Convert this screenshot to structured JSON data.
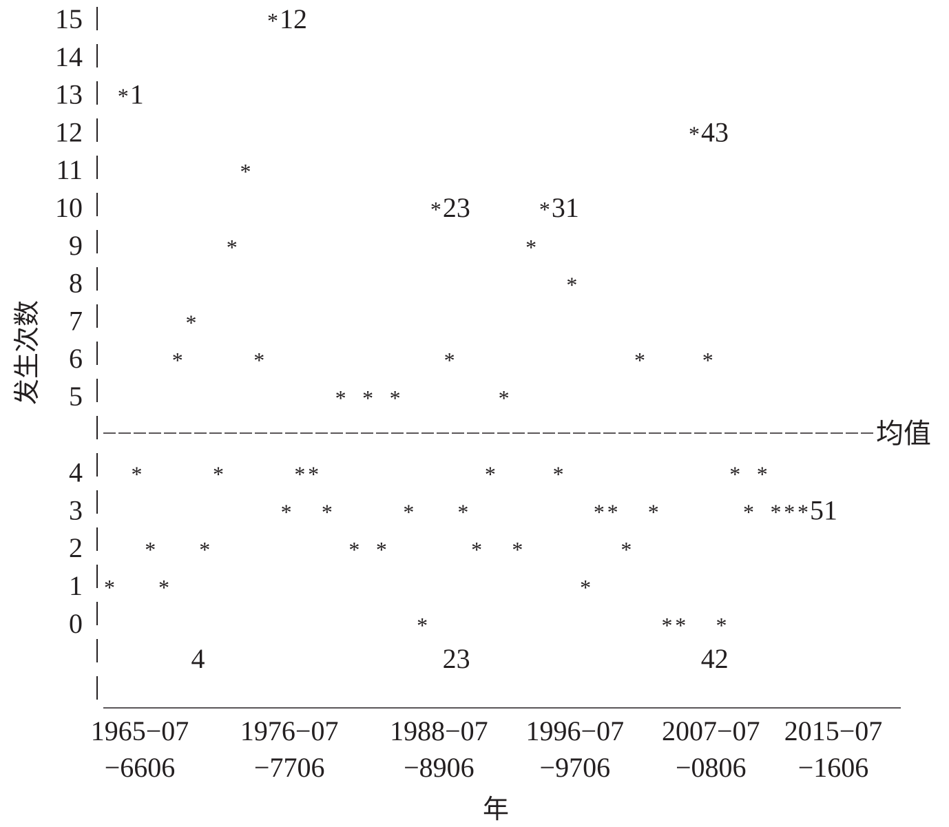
{
  "chart_data": {
    "type": "scatter",
    "title": "",
    "xlabel": "年",
    "ylabel": "发生次数",
    "marker": "*",
    "mean_label": "均值",
    "y_above_mean_ticks": [
      5,
      6,
      7,
      8,
      9,
      10,
      11,
      12,
      13,
      14,
      15
    ],
    "y_below_mean_ticks": [
      0,
      1,
      2,
      3,
      4
    ],
    "x_tick_labels": [
      {
        "top": "1965−07",
        "bottom": "−6606"
      },
      {
        "top": "1976−07",
        "bottom": "−7706"
      },
      {
        "top": "1988−07",
        "bottom": "−8906"
      },
      {
        "top": "1996−07",
        "bottom": "−9706"
      },
      {
        "top": "2007−07",
        "bottom": "−0806"
      },
      {
        "top": "2015−07",
        "bottom": "−1606"
      }
    ],
    "x_tick_index": [
      1,
      12,
      23,
      33,
      43,
      52
    ],
    "series": [
      {
        "values": [
          1,
          13,
          4,
          2,
          1,
          6,
          7,
          2,
          4,
          9,
          11,
          6,
          15,
          3,
          4,
          4,
          3,
          5,
          2,
          5,
          2,
          5,
          3,
          0,
          10,
          6,
          3,
          2,
          4,
          5,
          2,
          9,
          10,
          4,
          8,
          1,
          3,
          3,
          2,
          6,
          3,
          0,
          0,
          12,
          6,
          0,
          4,
          3,
          4,
          3,
          3,
          3
        ]
      }
    ],
    "annotations": [
      {
        "index": 2,
        "text": "1"
      },
      {
        "index": 13,
        "text": "12"
      },
      {
        "index": 25,
        "text": "23"
      },
      {
        "index": 33,
        "text": "31"
      },
      {
        "index": 44,
        "text": "43"
      },
      {
        "index": 52,
        "text": "51"
      }
    ],
    "below_labels": [
      {
        "index": 7,
        "text": "4"
      },
      {
        "index": 26,
        "text": "23"
      },
      {
        "index": 45,
        "text": "42"
      }
    ]
  }
}
